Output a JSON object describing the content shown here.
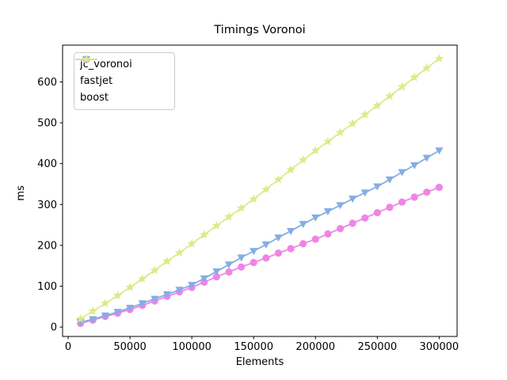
{
  "figure": {
    "title": "Timings Voronoi",
    "xlabel": "Elements",
    "ylabel": "ms",
    "background_color": "#ffffff",
    "axes_color": "#000000",
    "legend_border_color": "#cccccc"
  },
  "chart_data": {
    "type": "line",
    "title": "Timings Voronoi",
    "xlabel": "Elements",
    "ylabel": "ms",
    "grid": false,
    "legend_position": "upper left",
    "xlim": [
      -4500,
      314500
    ],
    "ylim": [
      -23,
      690
    ],
    "x_ticks": [
      0,
      50000,
      100000,
      150000,
      200000,
      250000,
      300000
    ],
    "x_tick_labels": [
      "0",
      "50000",
      "100000",
      "150000",
      "200000",
      "250000",
      "300000"
    ],
    "y_ticks": [
      0,
      100,
      200,
      300,
      400,
      500,
      600
    ],
    "y_tick_labels": [
      "0",
      "100",
      "200",
      "300",
      "400",
      "500",
      "600"
    ],
    "x": [
      10000,
      20000,
      30000,
      40000,
      50000,
      60000,
      70000,
      80000,
      90000,
      100000,
      110000,
      120000,
      130000,
      140000,
      150000,
      160000,
      170000,
      180000,
      190000,
      200000,
      210000,
      220000,
      230000,
      240000,
      250000,
      260000,
      270000,
      280000,
      290000,
      300000
    ],
    "series": [
      {
        "name": "jc_voronoi",
        "color": "#ee85e5",
        "marker": "circle",
        "values": [
          9,
          17,
          26,
          34,
          43,
          53,
          64,
          75,
          86,
          97,
          110,
          123,
          135,
          147,
          158,
          169,
          181,
          192,
          204,
          215,
          228,
          241,
          254,
          267,
          280,
          293,
          306,
          318,
          330,
          342
        ]
      },
      {
        "name": "fastjet",
        "color": "#85ade4",
        "marker": "triangle-down",
        "values": [
          12,
          19,
          28,
          37,
          47,
          58,
          69,
          80,
          91,
          103,
          119,
          136,
          153,
          170,
          186,
          202,
          219,
          235,
          252,
          268,
          283,
          298,
          314,
          329,
          344,
          361,
          379,
          396,
          414,
          432
        ]
      },
      {
        "name": "boost",
        "color": "#d8ec8a",
        "marker": "star",
        "values": [
          20,
          39,
          58,
          77,
          97,
          118,
          139,
          161,
          182,
          204,
          226,
          248,
          270,
          291,
          313,
          337,
          361,
          385,
          409,
          432,
          454,
          476,
          498,
          520,
          542,
          565,
          588,
          611,
          634,
          657
        ]
      }
    ]
  }
}
